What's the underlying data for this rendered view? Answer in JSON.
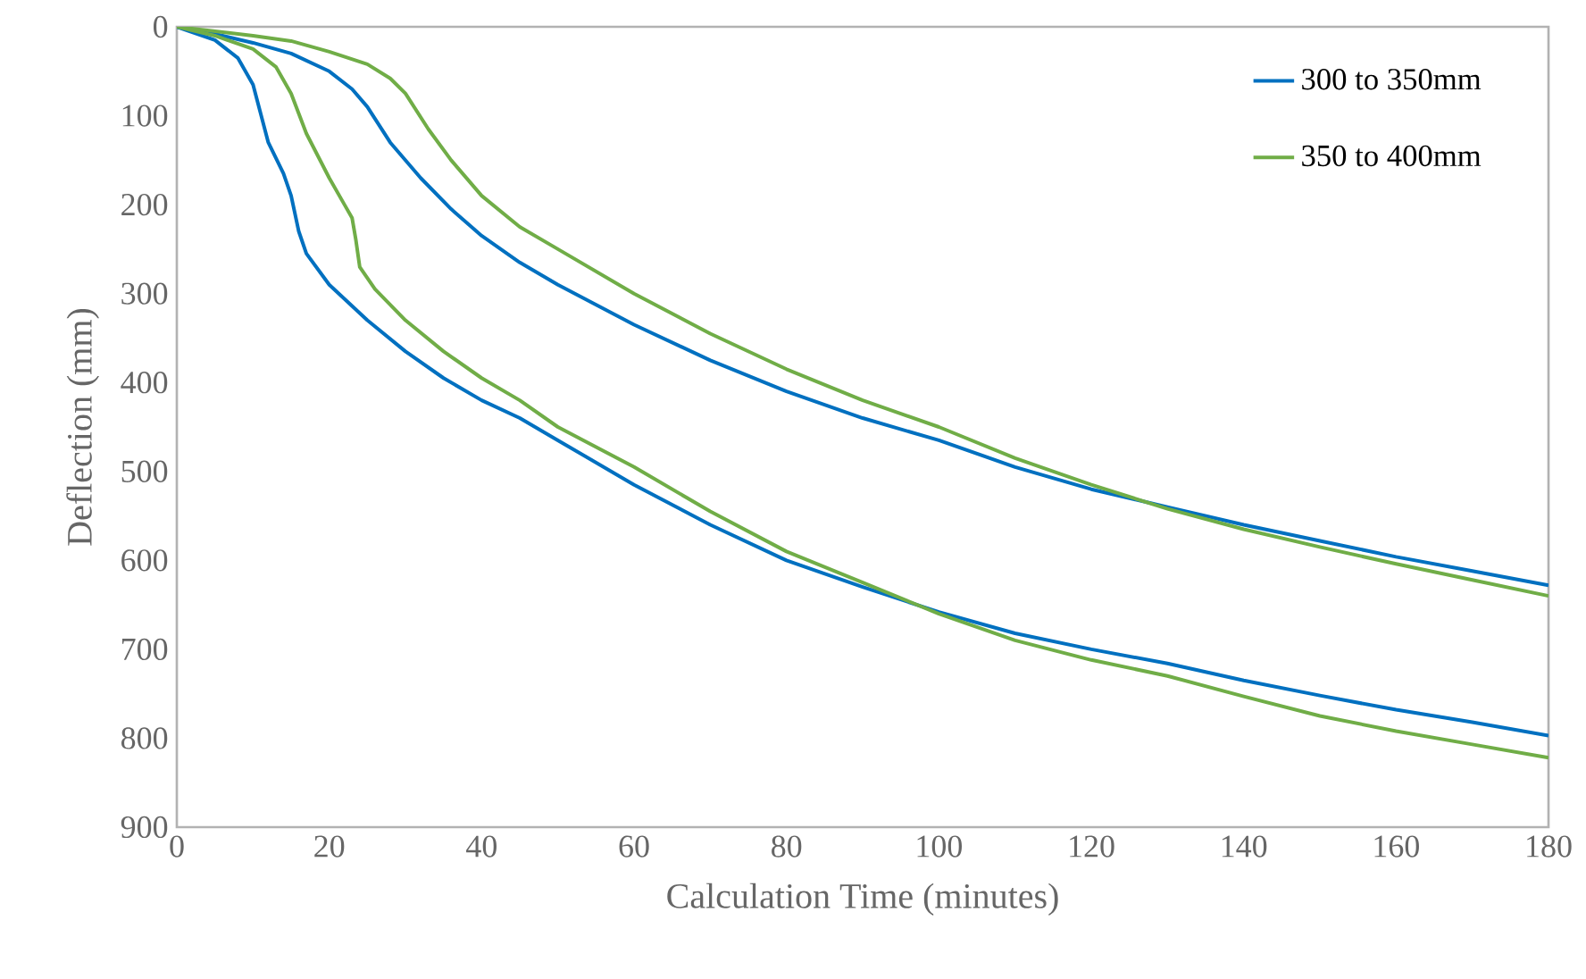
{
  "chart_data": {
    "type": "line",
    "xlabel": "Calculation Time (minutes)",
    "ylabel": "Deflection (mm)",
    "xlim": [
      0,
      180
    ],
    "xticks": [
      0,
      20,
      40,
      60,
      80,
      100,
      120,
      140,
      160,
      180
    ],
    "ylim": [
      900,
      0
    ],
    "yticks": [
      0,
      100,
      200,
      300,
      400,
      500,
      600,
      700,
      800,
      900
    ],
    "grid": false,
    "legend": "top right",
    "marker": "none",
    "line_style": "solid",
    "series": [
      {
        "name": "300 to 350mm",
        "color": "#0070c0",
        "x": [
          0,
          5,
          10,
          15,
          20,
          23,
          25,
          28,
          32,
          36,
          40,
          45,
          50,
          60,
          70,
          80,
          90,
          100,
          110,
          120,
          130,
          140,
          150,
          160,
          170,
          180
        ],
        "values": [
          0,
          8,
          18,
          30,
          50,
          70,
          90,
          130,
          170,
          205,
          235,
          265,
          290,
          335,
          375,
          410,
          440,
          465,
          495,
          520,
          540,
          560,
          578,
          596,
          612,
          628
        ]
      },
      {
        "name": "350 to 400mm",
        "color": "#70ad47",
        "x": [
          0,
          10,
          15,
          20,
          25,
          28,
          30,
          33,
          36,
          40,
          45,
          50,
          60,
          70,
          80,
          90,
          100,
          110,
          120,
          130,
          140,
          150,
          160,
          170,
          180
        ],
        "values": [
          0,
          10,
          16,
          28,
          42,
          58,
          75,
          115,
          150,
          190,
          225,
          250,
          300,
          345,
          385,
          420,
          450,
          485,
          515,
          542,
          565,
          585,
          604,
          622,
          640
        ]
      },
      {
        "color": "#0070c0",
        "x": [
          0,
          5,
          8,
          10,
          12,
          14,
          15,
          16,
          17,
          20,
          25,
          30,
          35,
          40,
          45,
          50,
          60,
          70,
          80,
          90,
          100,
          110,
          120,
          130,
          140,
          150,
          160,
          170,
          180
        ],
        "values": [
          0,
          15,
          35,
          65,
          130,
          165,
          190,
          230,
          255,
          290,
          330,
          365,
          395,
          420,
          440,
          465,
          515,
          560,
          600,
          630,
          658,
          682,
          700,
          716,
          735,
          752,
          768,
          782,
          797
        ]
      },
      {
        "color": "#70ad47",
        "x": [
          0,
          5,
          10,
          13,
          15,
          17,
          20,
          22,
          23,
          23.5,
          24,
          26,
          30,
          35,
          40,
          45,
          50,
          60,
          70,
          80,
          90,
          100,
          110,
          120,
          130,
          140,
          150,
          160,
          170,
          180
        ],
        "values": [
          0,
          10,
          25,
          45,
          75,
          120,
          170,
          200,
          215,
          240,
          270,
          295,
          330,
          365,
          395,
          420,
          450,
          495,
          545,
          590,
          625,
          660,
          690,
          712,
          730,
          753,
          775,
          792,
          807,
          822
        ]
      }
    ]
  }
}
